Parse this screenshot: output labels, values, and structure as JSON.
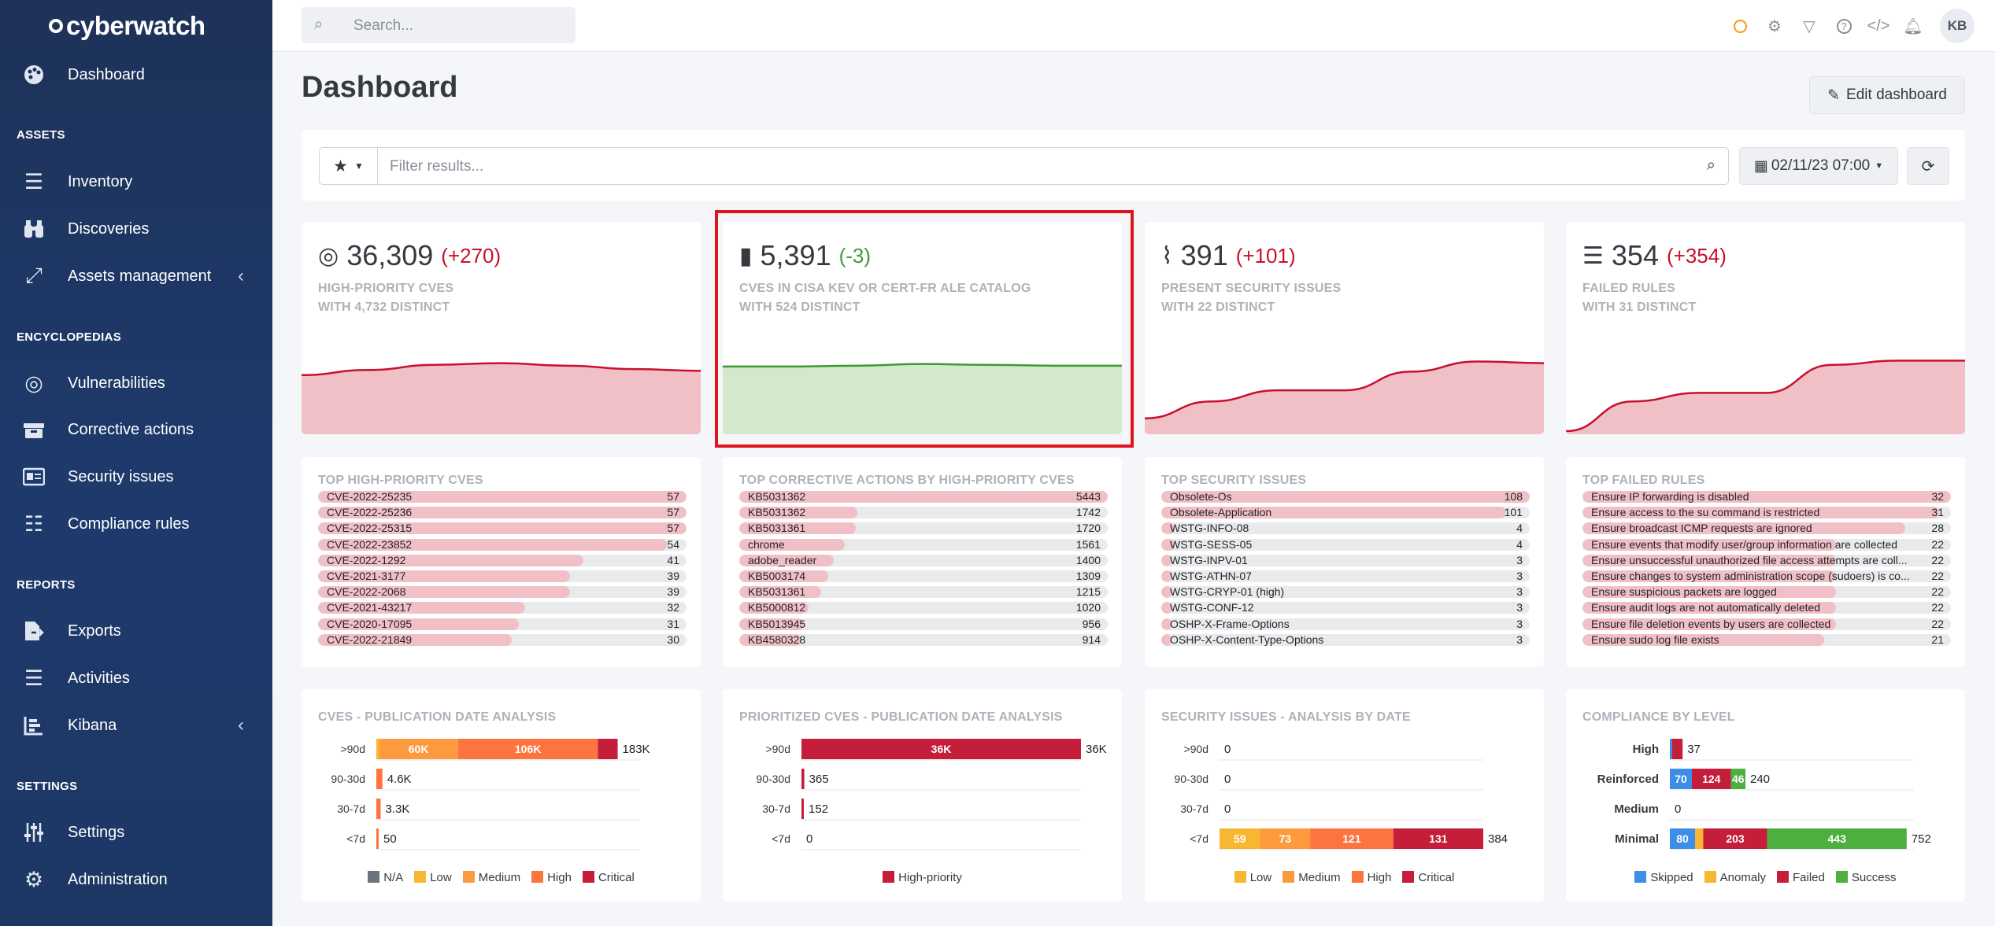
{
  "app": {
    "logo_text": "cyberwatch"
  },
  "sidebar": {
    "dashboard": "Dashboard",
    "sections": {
      "assets": "ASSETS",
      "encyclopedias": "ENCYCLOPEDIAS",
      "reports": "REPORTS",
      "settings": "SETTINGS"
    },
    "items": {
      "inventory": "Inventory",
      "discoveries": "Discoveries",
      "assets_management": "Assets management",
      "vulnerabilities": "Vulnerabilities",
      "corrective_actions": "Corrective actions",
      "security_issues": "Security issues",
      "compliance_rules": "Compliance rules",
      "exports": "Exports",
      "activities": "Activities",
      "kibana": "Kibana",
      "settings": "Settings",
      "administration": "Administration"
    }
  },
  "topbar": {
    "search_placeholder": "Search...",
    "avatar_initials": "KB",
    "status_color": "#f39c12"
  },
  "page": {
    "title": "Dashboard",
    "edit_label": "Edit dashboard"
  },
  "filter": {
    "placeholder": "Filter results...",
    "date": "02/11/23 07:00"
  },
  "kpis": [
    {
      "icon": "target-icon",
      "value": "36,309",
      "delta": "(+270)",
      "line1": "HIGH-PRIORITY CVES",
      "line2": "WITH 4,732 DISTINCT",
      "trend": [
        0.66,
        0.72,
        0.78,
        0.8,
        0.77,
        0.73,
        0.71
      ],
      "color": "#c8102e",
      "fill": "#f1c0c7"
    },
    {
      "icon": "book-icon",
      "value": "5,391",
      "delta": "(-3)",
      "line1": "CVES IN CISA KEV OR CERT-FR ALE CATALOG",
      "line2": "WITH 524 DISTINCT",
      "trend": [
        0.76,
        0.76,
        0.77,
        0.79,
        0.78,
        0.77,
        0.77
      ],
      "color": "#3d9a32",
      "fill": "#d3e8cc"
    },
    {
      "icon": "heartbeat-icon",
      "value": "391",
      "delta": "(+101)",
      "line1": "PRESENT SECURITY ISSUES",
      "line2": "WITH 22 DISTINCT",
      "trend": [
        0.15,
        0.35,
        0.48,
        0.48,
        0.7,
        0.82,
        0.8
      ],
      "color": "#c8102e",
      "fill": "#f1c0c7"
    },
    {
      "icon": "list-icon",
      "value": "354",
      "delta": "(+354)",
      "line1": "FAILED RULES",
      "line2": "WITH 31 DISTINCT",
      "trend": [
        0.0,
        0.35,
        0.45,
        0.45,
        0.78,
        0.83,
        0.83
      ],
      "color": "#c8102e",
      "fill": "#f1c0c7"
    }
  ],
  "lists": [
    {
      "title": "TOP HIGH-PRIORITY CVES",
      "rows": [
        {
          "name": "CVE-2022-25235",
          "count": 57
        },
        {
          "name": "CVE-2022-25236",
          "count": 57
        },
        {
          "name": "CVE-2022-25315",
          "count": 57
        },
        {
          "name": "CVE-2022-23852",
          "count": 54
        },
        {
          "name": "CVE-2022-1292",
          "count": 41
        },
        {
          "name": "CVE-2021-3177",
          "count": 39
        },
        {
          "name": "CVE-2022-2068",
          "count": 39
        },
        {
          "name": "CVE-2021-43217",
          "count": 32
        },
        {
          "name": "CVE-2020-17095",
          "count": 31
        },
        {
          "name": "CVE-2022-21849",
          "count": 30
        }
      ]
    },
    {
      "title": "TOP CORRECTIVE ACTIONS BY HIGH-PRIORITY CVES",
      "rows": [
        {
          "name": "KB5031362",
          "count": 5443
        },
        {
          "name": "KB5031362",
          "count": 1742
        },
        {
          "name": "KB5031361",
          "count": 1720
        },
        {
          "name": "chrome",
          "count": 1561
        },
        {
          "name": "adobe_reader",
          "count": 1400
        },
        {
          "name": "KB5003174",
          "count": 1309
        },
        {
          "name": "KB5031361",
          "count": 1215
        },
        {
          "name": "KB5000812",
          "count": 1020
        },
        {
          "name": "KB5013945",
          "count": 956
        },
        {
          "name": "KB4580328",
          "count": 914
        }
      ]
    },
    {
      "title": "TOP SECURITY ISSUES",
      "rows": [
        {
          "name": "Obsolete-Os",
          "count": 108
        },
        {
          "name": "Obsolete-Application",
          "count": 101
        },
        {
          "name": "WSTG-INFO-08",
          "count": 4
        },
        {
          "name": "WSTG-SESS-05",
          "count": 4
        },
        {
          "name": "WSTG-INPV-01",
          "count": 3
        },
        {
          "name": "WSTG-ATHN-07",
          "count": 3
        },
        {
          "name": "WSTG-CRYP-01 (high)",
          "count": 3
        },
        {
          "name": "WSTG-CONF-12",
          "count": 3
        },
        {
          "name": "OSHP-X-Frame-Options",
          "count": 3
        },
        {
          "name": "OSHP-X-Content-Type-Options",
          "count": 3
        }
      ]
    },
    {
      "title": "TOP FAILED RULES",
      "rows": [
        {
          "name": "Ensure IP forwarding is disabled",
          "count": 32
        },
        {
          "name": "Ensure access to the su command is restricted",
          "count": 31
        },
        {
          "name": "Ensure broadcast ICMP requests are ignored",
          "count": 28
        },
        {
          "name": "Ensure events that modify user/group information are collected",
          "count": 22
        },
        {
          "name": "Ensure unsuccessful unauthorized file access attempts are coll...",
          "count": 22
        },
        {
          "name": "Ensure changes to system administration scope (sudoers) is co...",
          "count": 22
        },
        {
          "name": "Ensure suspicious packets are logged",
          "count": 22
        },
        {
          "name": "Ensure audit logs are not automatically deleted",
          "count": 22
        },
        {
          "name": "Ensure file deletion events by users are collected",
          "count": 22
        },
        {
          "name": "Ensure sudo log file exists",
          "count": 21
        }
      ]
    }
  ],
  "chart_data": [
    {
      "type": "bar",
      "title": "CVES - PUBLICATION DATE ANALYSIS",
      "categories": [
        ">90d",
        "90-30d",
        "30-7d",
        "<7d"
      ],
      "series": [
        {
          "name": "N/A",
          "color": "#6c757d",
          "values": [
            0,
            0,
            0,
            0
          ],
          "labels": [
            "",
            "",
            "",
            ""
          ]
        },
        {
          "name": "Low",
          "color": "#f7b733",
          "values": [
            2,
            0,
            0,
            0
          ],
          "labels": [
            "",
            "",
            "",
            ""
          ]
        },
        {
          "name": "Medium",
          "color": "#fd9a3e",
          "values": [
            60,
            0,
            0,
            0
          ],
          "labels": [
            "60K",
            "",
            "",
            ""
          ]
        },
        {
          "name": "High",
          "color": "#fd7440",
          "values": [
            106,
            4.6,
            3.3,
            0.05
          ],
          "labels": [
            "106K",
            "",
            "",
            ""
          ]
        },
        {
          "name": "Critical",
          "color": "#c41e3a",
          "values": [
            15,
            0,
            0,
            0
          ],
          "labels": [
            "",
            "",
            "",
            ""
          ]
        }
      ],
      "totals": [
        "183K",
        "4.6K",
        "3.3K",
        "50"
      ],
      "xmax": 200
    },
    {
      "type": "bar",
      "title": "PRIORITIZED CVES - PUBLICATION DATE ANALYSIS",
      "categories": [
        ">90d",
        "90-30d",
        "30-7d",
        "<7d"
      ],
      "series": [
        {
          "name": "High-priority",
          "color": "#c41e3a",
          "values": [
            36,
            0.365,
            0.152,
            0
          ],
          "labels": [
            "36K",
            "",
            "",
            ""
          ]
        }
      ],
      "totals": [
        "36K",
        "365",
        "152",
        "0"
      ],
      "xmax": 36
    },
    {
      "type": "bar",
      "title": "SECURITY ISSUES - ANALYSIS BY DATE",
      "categories": [
        ">90d",
        "90-30d",
        "30-7d",
        "<7d"
      ],
      "series": [
        {
          "name": "Low",
          "color": "#f7b733",
          "values": [
            0,
            0,
            0,
            59
          ],
          "labels": [
            "",
            "",
            "",
            "59"
          ]
        },
        {
          "name": "Medium",
          "color": "#fd9a3e",
          "values": [
            0,
            0,
            0,
            73
          ],
          "labels": [
            "",
            "",
            "",
            "73"
          ]
        },
        {
          "name": "High",
          "color": "#fd7440",
          "values": [
            0,
            0,
            0,
            121
          ],
          "labels": [
            "",
            "",
            "",
            "121"
          ]
        },
        {
          "name": "Critical",
          "color": "#c41e3a",
          "values": [
            0,
            0,
            0,
            131
          ],
          "labels": [
            "",
            "",
            "",
            "131"
          ]
        }
      ],
      "totals": [
        "0",
        "0",
        "0",
        "384"
      ],
      "xmax": 384
    },
    {
      "type": "bar",
      "title": "COMPLIANCE BY LEVEL",
      "categories": [
        "High",
        "Reinforced",
        "Medium",
        "Minimal"
      ],
      "series": [
        {
          "name": "Skipped",
          "color": "#3d8ee8",
          "values": [
            4,
            70,
            0,
            80
          ],
          "labels": [
            "",
            "70",
            "",
            "80"
          ]
        },
        {
          "name": "Anomaly",
          "color": "#f7b733",
          "values": [
            0,
            0,
            0,
            26
          ],
          "labels": [
            "",
            "",
            "",
            ""
          ]
        },
        {
          "name": "Failed",
          "color": "#c41e3a",
          "values": [
            33,
            124,
            0,
            203
          ],
          "labels": [
            "",
            "124",
            "",
            "203"
          ]
        },
        {
          "name": "Success",
          "color": "#4caf3e",
          "values": [
            0,
            46,
            0,
            443
          ],
          "labels": [
            "",
            "46",
            "",
            "443"
          ]
        }
      ],
      "totals": [
        "37",
        "240",
        "0",
        "752"
      ],
      "xmax": 775
    }
  ]
}
